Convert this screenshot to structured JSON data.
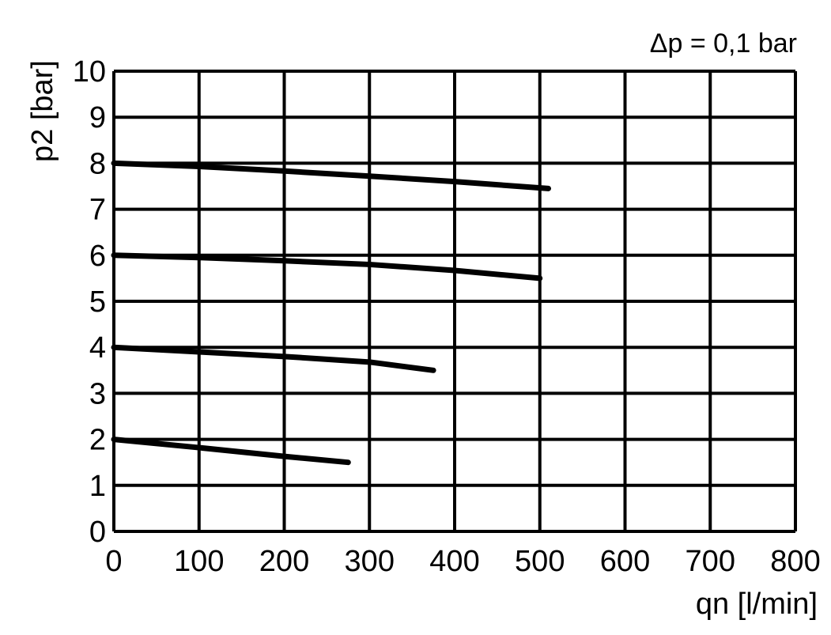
{
  "chart_data": {
    "type": "line",
    "annotation": "Δp = 0,1 bar",
    "xlabel": "qn [l/min]",
    "ylabel": "p2 [bar]",
    "xlim": [
      0,
      800
    ],
    "ylim": [
      0,
      10
    ],
    "xticks": [
      0,
      100,
      200,
      300,
      400,
      500,
      600,
      700,
      800
    ],
    "yticks": [
      0,
      1,
      2,
      3,
      4,
      5,
      6,
      7,
      8,
      9,
      10
    ],
    "grid": true,
    "line_color": "#000000",
    "series": [
      {
        "x": [
          0,
          100,
          200,
          300,
          400,
          510
        ],
        "y": [
          8,
          7.93,
          7.83,
          7.72,
          7.6,
          7.45
        ]
      },
      {
        "x": [
          0,
          100,
          200,
          300,
          400,
          500
        ],
        "y": [
          6,
          5.95,
          5.88,
          5.8,
          5.67,
          5.5
        ]
      },
      {
        "x": [
          0,
          100,
          200,
          300,
          375
        ],
        "y": [
          4,
          3.9,
          3.8,
          3.68,
          3.5
        ]
      },
      {
        "x": [
          0,
          100,
          200,
          275
        ],
        "y": [
          2,
          1.82,
          1.63,
          1.5
        ]
      }
    ]
  }
}
